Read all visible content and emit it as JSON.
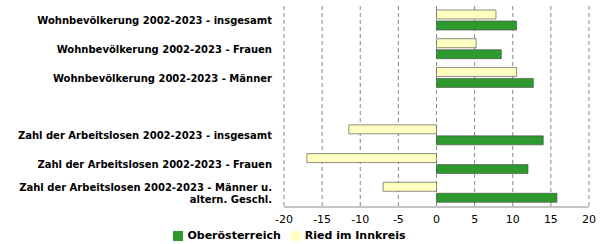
{
  "chart_data": {
    "type": "bar",
    "orientation": "horizontal",
    "categories": [
      "Wohnbevölkerung 2002-2023 - insgesamt",
      "Wohnbevölkerung 2002-2023 - Frauen",
      "Wohnbevölkerung 2002-2023 - Männer",
      null,
      "Zahl der Arbeitslosen 2002-2023 - insgesamt",
      "Zahl der Arbeitslosen 2002-2023 - Frauen",
      "Zahl der Arbeitslosen 2002-2023 - Männer u. altern. Geschl."
    ],
    "series": [
      {
        "name": "Ried im Innkreis",
        "color": "#ffffc0",
        "values": [
          7.8,
          5.2,
          10.5,
          null,
          -11.5,
          -17,
          -7
        ]
      },
      {
        "name": "Oberösterreich",
        "color": "#2e9a2e",
        "values": [
          10.5,
          8.5,
          12.7,
          null,
          14,
          12,
          15.8
        ]
      }
    ],
    "xlim": [
      -20,
      20
    ],
    "xticks": [
      -20,
      -15,
      -10,
      -5,
      0,
      5,
      10,
      15,
      20
    ],
    "grid": true,
    "legend": "bottom"
  }
}
